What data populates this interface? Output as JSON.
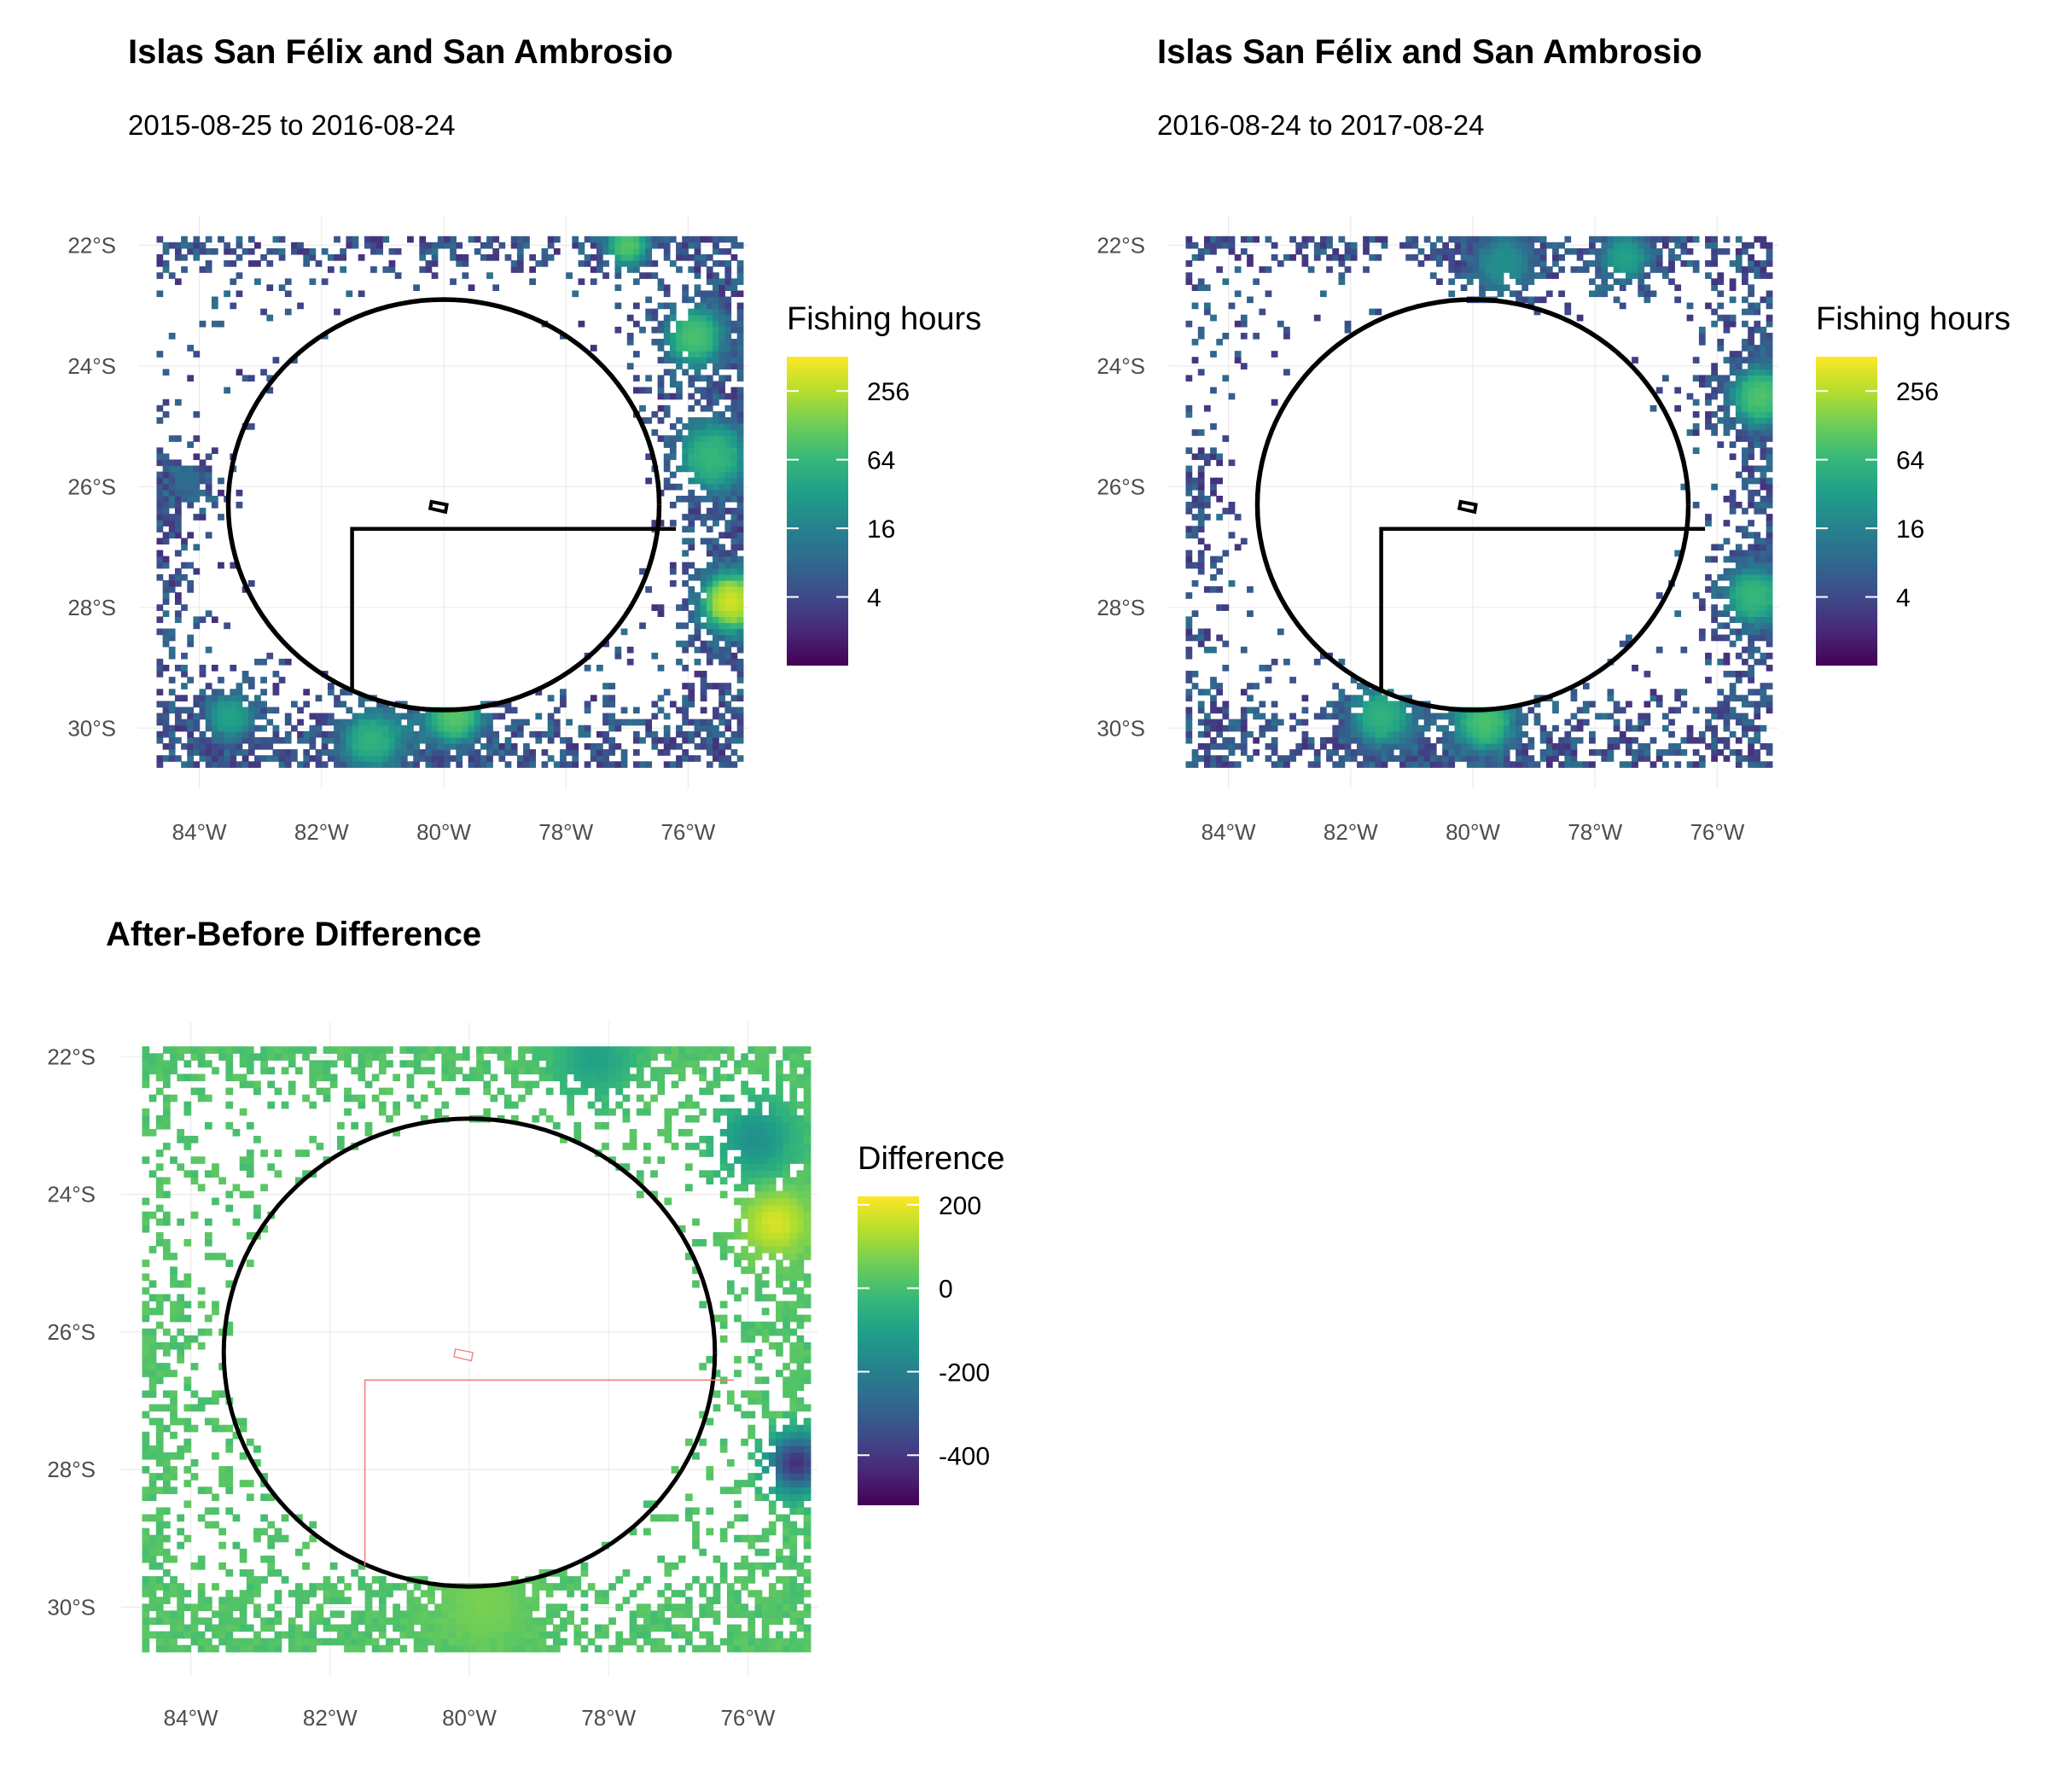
{
  "chart_data": [
    {
      "type": "heatmap",
      "panel": "before",
      "title": "Islas San Félix and San Ambrosio",
      "subtitle": "2015-08-25 to 2016-08-24",
      "xlim": [
        -85.0,
        -75.0
      ],
      "ylim": [
        -31.0,
        -21.5
      ],
      "x_ticks": [
        -84,
        -82,
        -80,
        -78,
        -76
      ],
      "x_tick_labels": [
        "84°W",
        "82°W",
        "80°W",
        "78°W",
        "76°W"
      ],
      "y_ticks": [
        -22,
        -24,
        -26,
        -28,
        -30
      ],
      "y_tick_labels": [
        "22°S",
        "24°S",
        "26°S",
        "28°S",
        "30°S"
      ],
      "grid": true,
      "legend": {
        "title": "Fishing hours",
        "position": "right",
        "scale": "log2",
        "range": [
          1,
          512
        ],
        "breaks": [
          256,
          64,
          16,
          4
        ],
        "break_labels": [
          "256",
          "64",
          "16",
          "4"
        ],
        "palette": "viridis"
      },
      "eez_circle": {
        "center_lon": -80.0,
        "center_lat": -26.3,
        "radius_deg": 3.4
      },
      "mpa_boundary": [
        [
          -81.5,
          -29.4
        ],
        [
          -81.5,
          -26.7
        ],
        [
          -76.2,
          -26.7
        ]
      ],
      "island_outline": [
        [
          -80.2,
          -26.25
        ],
        [
          -79.95,
          -26.3
        ],
        [
          -79.97,
          -26.42
        ],
        [
          -80.22,
          -26.36
        ]
      ],
      "hotspots": [
        {
          "lon": -75.3,
          "lat": -27.9,
          "sd": 0.5,
          "log2_hours": 8.4
        },
        {
          "lon": -75.6,
          "lat": -25.5,
          "sd": 0.6,
          "log2_hours": 6.0
        },
        {
          "lon": -75.9,
          "lat": -23.5,
          "sd": 0.5,
          "log2_hours": 6.4
        },
        {
          "lon": -77.0,
          "lat": -22.0,
          "sd": 0.35,
          "log2_hours": 6.6
        },
        {
          "lon": -79.8,
          "lat": -29.8,
          "sd": 0.45,
          "log2_hours": 6.6
        },
        {
          "lon": -81.2,
          "lat": -30.2,
          "sd": 0.5,
          "log2_hours": 5.8
        },
        {
          "lon": -83.5,
          "lat": -29.8,
          "sd": 0.4,
          "log2_hours": 5.2
        },
        {
          "lon": -84.2,
          "lat": -25.9,
          "sd": 0.3,
          "log2_hours": 3.2
        }
      ]
    },
    {
      "type": "heatmap",
      "panel": "after",
      "title": "Islas San Félix and San Ambrosio",
      "subtitle": "2016-08-24 to 2017-08-24",
      "xlim": [
        -85.0,
        -75.0
      ],
      "ylim": [
        -31.0,
        -21.5
      ],
      "x_ticks": [
        -84,
        -82,
        -80,
        -78,
        -76
      ],
      "x_tick_labels": [
        "84°W",
        "82°W",
        "80°W",
        "78°W",
        "76°W"
      ],
      "y_ticks": [
        -22,
        -24,
        -26,
        -28,
        -30
      ],
      "y_tick_labels": [
        "22°S",
        "24°S",
        "26°S",
        "28°S",
        "30°S"
      ],
      "grid": true,
      "legend": {
        "title": "Fishing hours",
        "position": "right",
        "scale": "log2",
        "range": [
          1,
          512
        ],
        "breaks": [
          256,
          64,
          16,
          4
        ],
        "break_labels": [
          "256",
          "64",
          "16",
          "4"
        ],
        "palette": "viridis"
      },
      "eez_circle": {
        "center_lon": -80.0,
        "center_lat": -26.3,
        "radius_deg": 3.4
      },
      "mpa_boundary": [
        [
          -81.5,
          -29.4
        ],
        [
          -81.5,
          -26.7
        ],
        [
          -76.2,
          -26.7
        ]
      ],
      "island_outline": [
        [
          -80.2,
          -26.25
        ],
        [
          -79.95,
          -26.3
        ],
        [
          -79.97,
          -26.42
        ],
        [
          -80.22,
          -26.36
        ]
      ],
      "hotspots": [
        {
          "lon": -75.3,
          "lat": -24.5,
          "sd": 0.5,
          "log2_hours": 6.5
        },
        {
          "lon": -75.4,
          "lat": -27.8,
          "sd": 0.5,
          "log2_hours": 6.0
        },
        {
          "lon": -79.8,
          "lat": -29.9,
          "sd": 0.5,
          "log2_hours": 6.4
        },
        {
          "lon": -81.5,
          "lat": -29.8,
          "sd": 0.5,
          "log2_hours": 5.8
        },
        {
          "lon": -77.5,
          "lat": -22.2,
          "sd": 0.4,
          "log2_hours": 5.2
        },
        {
          "lon": -79.5,
          "lat": -22.3,
          "sd": 0.5,
          "log2_hours": 4.5
        }
      ]
    },
    {
      "type": "heatmap",
      "panel": "difference",
      "title": "After-Before Difference",
      "xlim": [
        -85.0,
        -75.0
      ],
      "ylim": [
        -31.0,
        -21.5
      ],
      "x_ticks": [
        -84,
        -82,
        -80,
        -78,
        -76
      ],
      "x_tick_labels": [
        "84°W",
        "82°W",
        "80°W",
        "78°W",
        "76°W"
      ],
      "y_ticks": [
        -22,
        -24,
        -26,
        -28,
        -30
      ],
      "y_tick_labels": [
        "22°S",
        "24°S",
        "26°S",
        "28°S",
        "30°S"
      ],
      "grid": true,
      "legend": {
        "title": "Difference",
        "position": "right",
        "scale": "linear",
        "range": [
          -520,
          220
        ],
        "breaks": [
          200,
          0,
          -200,
          -400
        ],
        "break_labels": [
          "200",
          "0",
          "-200",
          "-400"
        ],
        "palette": "viridis"
      },
      "eez_circle": {
        "center_lon": -80.0,
        "center_lat": -26.3,
        "radius_deg": 3.4
      },
      "mpa_boundary": [
        [
          -81.5,
          -29.4
        ],
        [
          -81.5,
          -26.7
        ],
        [
          -76.2,
          -26.7
        ]
      ],
      "island_outline": [
        [
          -80.2,
          -26.25
        ],
        [
          -79.95,
          -26.3
        ],
        [
          -79.97,
          -26.42
        ],
        [
          -80.22,
          -26.36
        ]
      ],
      "hotspots": [
        {
          "lon": -75.6,
          "lat": -24.4,
          "sd": 0.35,
          "value": 180
        },
        {
          "lon": -75.3,
          "lat": -27.9,
          "sd": 0.3,
          "value": -420
        },
        {
          "lon": -75.9,
          "lat": -23.2,
          "sd": 0.4,
          "value": -150
        },
        {
          "lon": -78.2,
          "lat": -22.0,
          "sd": 0.4,
          "value": -100
        },
        {
          "lon": -79.8,
          "lat": -29.9,
          "sd": 0.5,
          "value": 70
        }
      ]
    }
  ],
  "colors": {
    "viridis": [
      "#440154",
      "#482878",
      "#3E4A89",
      "#31688E",
      "#26828E",
      "#1F9E89",
      "#35B779",
      "#6DCD59",
      "#B4DE2C",
      "#FDE725"
    ],
    "eez_circle": "#000000",
    "mpa_boundary_panels": "#000000",
    "mpa_boundary_difference": "#F08080",
    "grid": "#EBEBEB",
    "tick_text": "#4D4D4D"
  }
}
